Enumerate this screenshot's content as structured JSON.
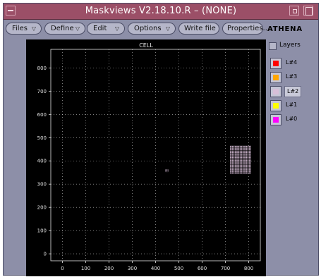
{
  "window": {
    "title": "Maskviews V2.18.10.R – (NONE)"
  },
  "menubar": {
    "items": [
      {
        "label": "Files",
        "dropdown": true
      },
      {
        "label": "Define",
        "dropdown": true
      },
      {
        "label": "Edit",
        "dropdown": true
      },
      {
        "label": "Options",
        "dropdown": true
      },
      {
        "label": "Write file",
        "dropdown": false
      },
      {
        "label": "Properties...",
        "dropdown": false
      }
    ],
    "brand": "ATHENA"
  },
  "layers": {
    "title": "Layers",
    "items": [
      {
        "name": "L#4",
        "color": "#ff0000",
        "selected": false
      },
      {
        "name": "L#3",
        "color": "#ffa500",
        "selected": false
      },
      {
        "name": "L#2",
        "color": "#d8bfd8",
        "selected": true
      },
      {
        "name": "L#1",
        "color": "#ffff00",
        "selected": false
      },
      {
        "name": "L#0",
        "color": "#ff00ff",
        "selected": false
      }
    ]
  },
  "plot": {
    "cell_label": "CELL",
    "x_ticks": [
      0,
      100,
      200,
      300,
      400,
      500,
      600,
      700,
      800
    ],
    "y_ticks": [
      0,
      100,
      200,
      300,
      400,
      500,
      600,
      700,
      800
    ],
    "xlim": [
      -50,
      850
    ],
    "ylim": [
      -30,
      880
    ],
    "grid": true,
    "colors": {
      "background": "#000000",
      "axis": "#e6e6e6",
      "grid": "#c8c8c8",
      "shape": "#d8bfd8"
    },
    "shapes": [
      {
        "layer": "L#2",
        "x": [
          720,
          810
        ],
        "y": [
          345,
          465
        ],
        "pattern": "grid"
      },
      {
        "layer": "L#2",
        "x": [
          442,
          455
        ],
        "y": [
          352,
          363
        ],
        "pattern": "grid"
      }
    ]
  }
}
